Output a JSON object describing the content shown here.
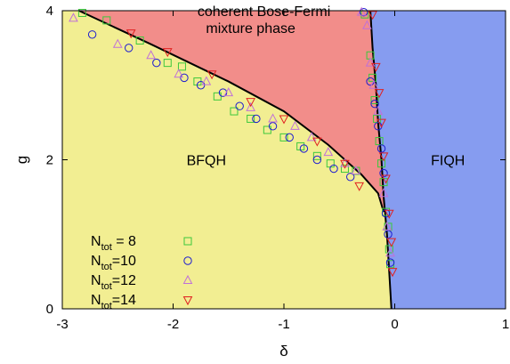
{
  "chart_data": {
    "type": "scatter",
    "title": "",
    "xlabel": "δ",
    "ylabel": "g",
    "xlim": [
      -3,
      1
    ],
    "ylim": [
      0,
      4
    ],
    "xticks": [
      "-3",
      "-2",
      "-1",
      "0",
      "1"
    ],
    "yticks": [
      "0",
      "2",
      "4"
    ],
    "grid": false,
    "legend_position": "bottom-left",
    "regions": [
      {
        "name": "BFQH",
        "label_at": [
          -1.7,
          1.93
        ],
        "color": "#f2ee92"
      },
      {
        "name": "FIQH",
        "label_at": [
          0.48,
          1.93
        ],
        "color": "#869cf0"
      },
      {
        "name": "coherent Bose-Fermi mixture phase",
        "lines": [
          "coherent Bose-Fermi",
          "mixture phase"
        ],
        "label_at": [
          -1.3,
          3.7
        ],
        "color": "#f28d8a"
      }
    ],
    "boundary_lines": [
      {
        "name": "BFQH upper boundary",
        "color": "#000000",
        "x": [
          -2.85,
          -2.2,
          -1.5,
          -1.0,
          -0.6,
          -0.3,
          -0.15,
          -0.1
        ],
        "y": [
          4.0,
          3.55,
          3.05,
          2.65,
          2.2,
          1.8,
          1.55,
          1.3
        ]
      },
      {
        "name": "FIQH boundary",
        "color": "#000000",
        "x": [
          -0.22,
          -0.2,
          -0.17,
          -0.15,
          -0.12,
          -0.1,
          -0.07,
          -0.05,
          -0.03
        ],
        "y": [
          4.0,
          3.5,
          3.0,
          2.5,
          2.0,
          1.5,
          1.0,
          0.5,
          0.0
        ]
      }
    ],
    "series": [
      {
        "name": "N_tot = 8",
        "label_main": "N",
        "label_sub": "tot",
        "label_rest": " = 8",
        "marker": "square",
        "color": "#3cc83c",
        "x": [
          -2.82,
          -2.6,
          -2.3,
          -2.05,
          -1.92,
          -1.78,
          -1.6,
          -1.45,
          -1.3,
          -1.15,
          -1.0,
          -0.85,
          -0.7,
          -0.58,
          -0.45,
          -0.35,
          -0.27,
          -0.22,
          -0.2,
          -0.18,
          -0.16,
          -0.14,
          -0.12,
          -0.1,
          -0.08,
          -0.06,
          -0.05,
          -0.04
        ],
        "y": [
          3.97,
          3.87,
          3.6,
          3.3,
          3.25,
          3.05,
          2.85,
          2.65,
          2.55,
          2.4,
          2.3,
          2.18,
          2.05,
          1.95,
          1.88,
          1.85,
          3.95,
          3.4,
          3.1,
          2.8,
          2.55,
          2.25,
          1.95,
          1.7,
          1.3,
          1.1,
          0.8,
          0.6
        ]
      },
      {
        "name": "N_tot=10",
        "label_main": "N",
        "label_sub": "tot",
        "label_rest": "=10",
        "marker": "circle",
        "color": "#1c1cd0",
        "x": [
          -2.73,
          -2.4,
          -2.15,
          -1.9,
          -1.75,
          -1.55,
          -1.4,
          -1.25,
          -1.1,
          -0.95,
          -0.82,
          -0.7,
          -0.55,
          -0.4,
          -0.28,
          -0.22,
          -0.18,
          -0.15,
          -0.12,
          -0.1,
          -0.08,
          -0.06,
          -0.04
        ],
        "y": [
          3.68,
          3.5,
          3.3,
          3.1,
          3.0,
          2.9,
          2.72,
          2.55,
          2.45,
          2.3,
          2.15,
          2.0,
          1.88,
          1.77,
          3.98,
          3.05,
          2.75,
          2.45,
          2.15,
          1.82,
          1.28,
          1.0,
          0.62
        ]
      },
      {
        "name": "N_tot=12",
        "label_main": "N",
        "label_sub": "tot",
        "label_rest": "=12",
        "marker": "triangle-up",
        "color": "#c070d8",
        "x": [
          -2.9,
          -2.5,
          -2.2,
          -1.95,
          -1.7,
          -1.5,
          -1.3,
          -1.1,
          -0.9,
          -0.75,
          -0.6,
          -0.45,
          -0.35,
          -0.3,
          -0.25,
          -0.22,
          -0.19,
          -0.15,
          -0.1,
          -0.07,
          -0.04
        ],
        "y": [
          3.9,
          3.55,
          3.4,
          3.15,
          3.05,
          2.9,
          2.7,
          2.55,
          2.45,
          2.3,
          2.1,
          1.95,
          1.85,
          3.98,
          3.8,
          3.3,
          3.0,
          2.65,
          1.55,
          1.1,
          0.75
        ]
      },
      {
        "name": "N_tot=14",
        "label_main": "N",
        "label_sub": "tot",
        "label_rest": "=14",
        "marker": "triangle-down",
        "color": "#e02020",
        "x": [
          -2.38,
          -2.05,
          -1.65,
          -1.3,
          -1.0,
          -0.7,
          -0.45,
          -0.32,
          -0.2,
          -0.17,
          -0.14,
          -0.12,
          -0.1,
          -0.08,
          -0.05,
          -0.03,
          -0.02
        ],
        "y": [
          3.7,
          3.45,
          3.15,
          2.78,
          2.55,
          2.25,
          1.95,
          1.65,
          3.95,
          3.25,
          2.9,
          2.5,
          2.05,
          1.75,
          1.28,
          0.9,
          0.5
        ]
      }
    ]
  }
}
